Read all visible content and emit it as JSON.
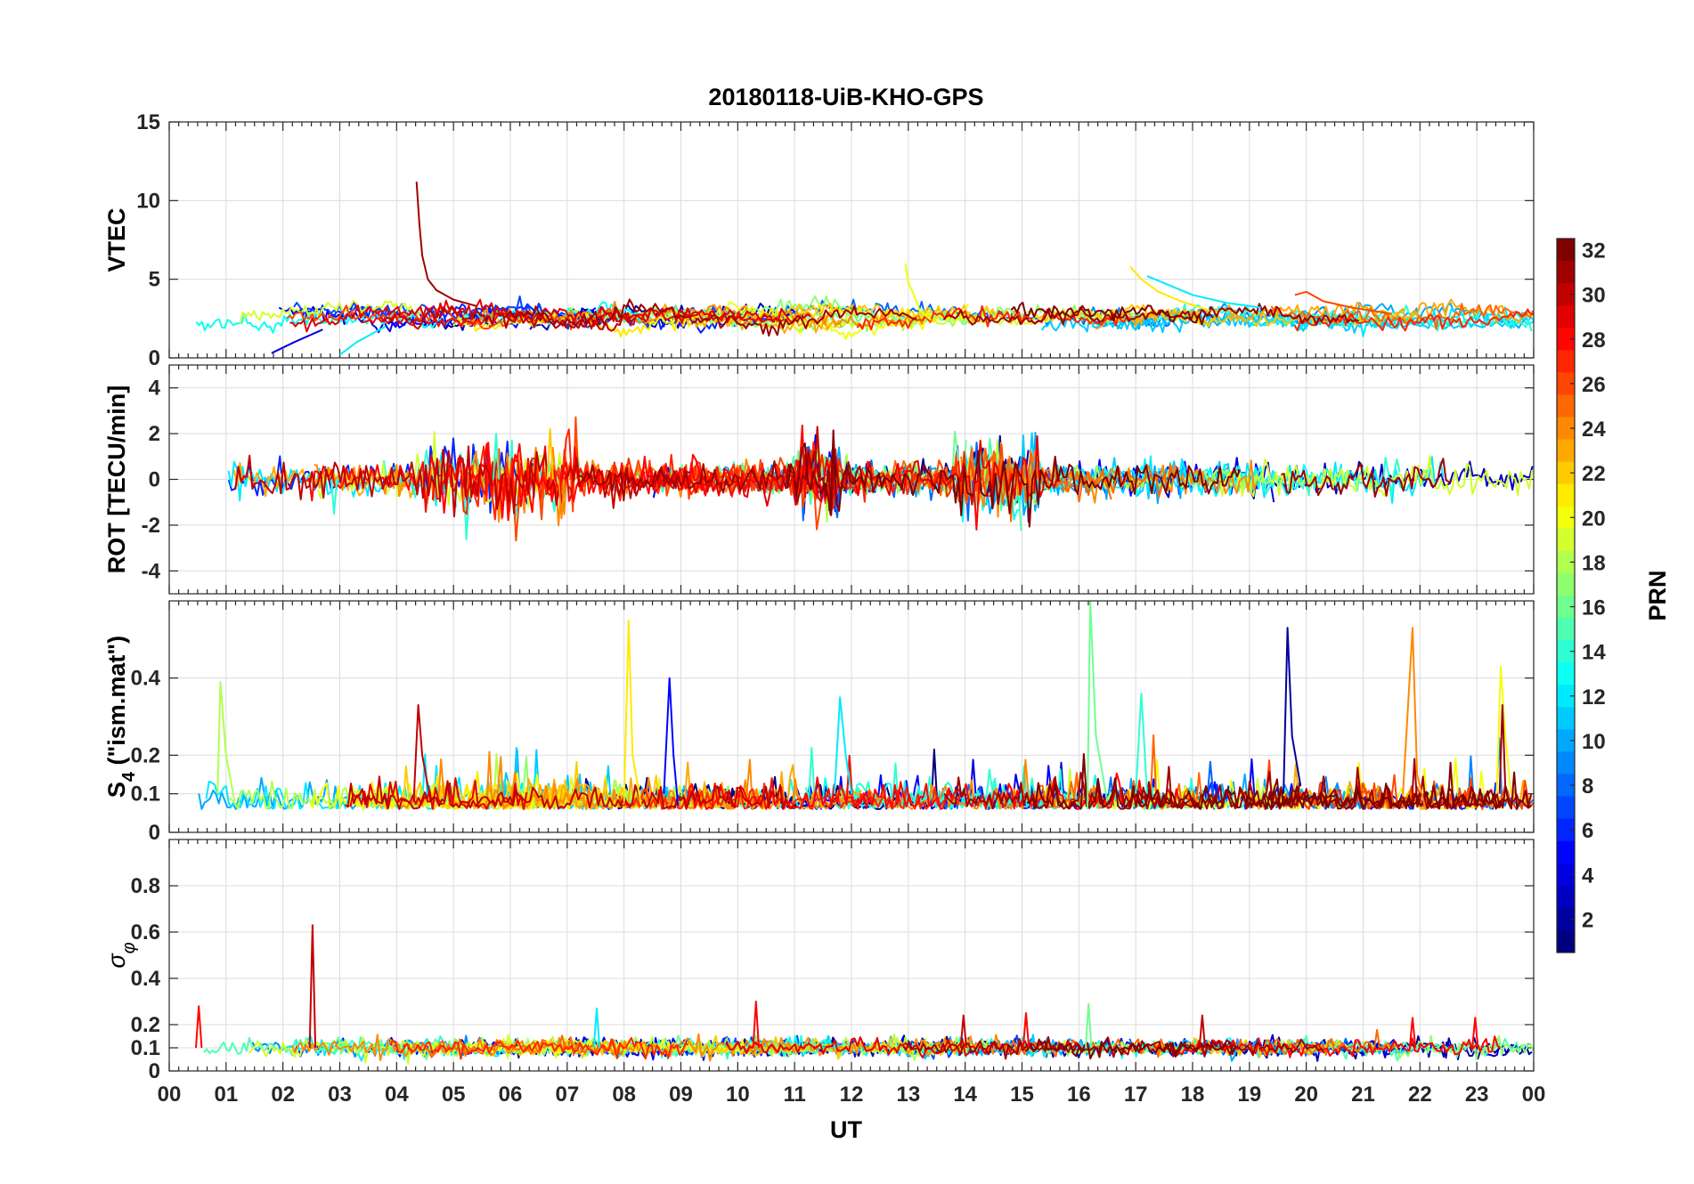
{
  "chart_data": {
    "type": "line",
    "title": "20180118-UiB-KHO-GPS",
    "xlabel": "UT",
    "x_ticks": [
      "00",
      "01",
      "02",
      "03",
      "04",
      "05",
      "06",
      "07",
      "08",
      "09",
      "10",
      "11",
      "12",
      "13",
      "14",
      "15",
      "16",
      "17",
      "18",
      "19",
      "20",
      "21",
      "22",
      "23",
      "00"
    ],
    "xlim_hours": [
      0,
      24
    ],
    "grid": true,
    "colorbar": {
      "label": "PRN",
      "range": [
        1,
        32
      ],
      "ticks": [
        "2",
        "4",
        "6",
        "8",
        "10",
        "12",
        "14",
        "16",
        "18",
        "20",
        "22",
        "24",
        "26",
        "28",
        "30",
        "32"
      ],
      "colormap": "jet",
      "placement": "right"
    },
    "panels": [
      {
        "name": "vtec",
        "ylabel": "VTEC",
        "ylim": [
          0,
          15
        ],
        "y_ticks": [
          "0",
          "5",
          "10",
          "15"
        ],
        "baseline": 2.6,
        "variability": 0.7,
        "events": [
          {
            "prn": 31,
            "t": [
              4.35,
              4.4,
              4.45,
              4.55,
              4.7,
              5.0,
              5.4
            ],
            "v": [
              11.2,
              8.5,
              6.5,
              5.0,
              4.3,
              3.7,
              3.3
            ]
          },
          {
            "prn": 20,
            "t": [
              12.95,
              13.0,
              13.1,
              13.2,
              13.4
            ],
            "v": [
              6.0,
              4.8,
              4.0,
              3.0,
              2.4
            ]
          },
          {
            "prn": 21,
            "t": [
              16.9,
              17.1,
              17.4,
              17.8,
              18.3
            ],
            "v": [
              5.8,
              5.0,
              4.2,
              3.6,
              3.0
            ]
          },
          {
            "prn": 12,
            "t": [
              17.2,
              17.6,
              18.0,
              18.6,
              19.2
            ],
            "v": [
              5.2,
              4.6,
              4.0,
              3.5,
              3.2
            ]
          },
          {
            "prn": 26,
            "t": [
              19.8,
              20.0,
              20.3,
              20.8,
              21.5
            ],
            "v": [
              4.0,
              4.2,
              3.6,
              3.2,
              2.8
            ]
          },
          {
            "prn": 4,
            "t": [
              1.8,
              2.2,
              2.7
            ],
            "v": [
              0.3,
              1.0,
              1.8
            ]
          },
          {
            "prn": 12,
            "t": [
              3.0,
              3.3,
              3.8
            ],
            "v": [
              0.2,
              1.0,
              2.0
            ]
          }
        ]
      },
      {
        "name": "rot",
        "ylabel": "ROT [TECU/min]",
        "ylim": [
          -5,
          5
        ],
        "y_ticks": [
          "-4",
          "-2",
          "0",
          "2",
          "4"
        ],
        "baseline": 0,
        "variability": 0.35,
        "events": [
          {
            "prn": 30,
            "t": [
              11.35,
              11.4,
              11.45
            ],
            "v": [
              0,
              2.3,
              0
            ]
          },
          {
            "prn": 28,
            "t": [
              14.15,
              14.2,
              14.25
            ],
            "v": [
              0,
              -2.2,
              0
            ]
          },
          {
            "prn": 22,
            "t": [
              6.65,
              6.7,
              6.75
            ],
            "v": [
              0,
              2.2,
              0
            ]
          },
          {
            "prn": 14,
            "t": [
              5.7,
              5.75,
              5.8
            ],
            "v": [
              0,
              2.0,
              0
            ]
          },
          {
            "prn": 24,
            "t": [
              6.85,
              6.9,
              6.95
            ],
            "v": [
              0,
              -1.7,
              0
            ]
          },
          {
            "prn": 14,
            "t": [
              2.85,
              2.9,
              2.95
            ],
            "v": [
              0,
              -1.5,
              0
            ]
          }
        ]
      },
      {
        "name": "s4",
        "ylabel": "S4 (\"ism.mat\")",
        "ylabel_main": "S",
        "ylabel_sub": "4",
        "ylabel_rest": " (\"ism.mat\")",
        "ylim": [
          0,
          0.6
        ],
        "y_ticks": [
          "0",
          "0.1",
          "0.2",
          "0.4"
        ],
        "baseline": 0.06,
        "variability": 0.03,
        "events": [
          {
            "prn": 16,
            "t": [
              16.15,
              16.2,
              16.3,
              16.5
            ],
            "v": [
              0.06,
              0.6,
              0.25,
              0.08
            ]
          },
          {
            "prn": 21,
            "t": [
              8.0,
              8.08,
              8.15,
              8.3
            ],
            "v": [
              0.08,
              0.55,
              0.2,
              0.07
            ]
          },
          {
            "prn": 2,
            "t": [
              19.6,
              19.67,
              19.75,
              19.9
            ],
            "v": [
              0.1,
              0.53,
              0.25,
              0.12
            ]
          },
          {
            "prn": 24,
            "t": [
              21.7,
              21.87,
              21.95,
              22.1
            ],
            "v": [
              0.1,
              0.53,
              0.15,
              0.06
            ]
          },
          {
            "prn": 18,
            "t": [
              0.85,
              0.9,
              1.0,
              1.15
            ],
            "v": [
              0.1,
              0.39,
              0.2,
              0.08
            ]
          },
          {
            "prn": 5,
            "t": [
              8.7,
              8.8,
              8.87,
              8.95
            ],
            "v": [
              0.1,
              0.4,
              0.2,
              0.07
            ]
          },
          {
            "prn": 30,
            "t": [
              4.3,
              4.38,
              4.45,
              4.6
            ],
            "v": [
              0.08,
              0.33,
              0.2,
              0.08
            ]
          },
          {
            "prn": 20,
            "t": [
              23.35,
              23.42,
              23.5,
              23.6
            ],
            "v": [
              0.1,
              0.43,
              0.25,
              0.1
            ]
          },
          {
            "prn": 12,
            "t": [
              11.7,
              11.8,
              11.9,
              12.0
            ],
            "v": [
              0.1,
              0.35,
              0.2,
              0.1
            ]
          },
          {
            "prn": 31,
            "t": [
              23.4,
              23.45,
              23.5
            ],
            "v": [
              0.1,
              0.33,
              0.12
            ]
          },
          {
            "prn": 14,
            "t": [
              17.0,
              17.1,
              17.2
            ],
            "v": [
              0.1,
              0.36,
              0.1
            ]
          }
        ]
      },
      {
        "name": "sigma_phi",
        "ylabel": "σφ",
        "ylabel_main": "σ",
        "ylabel_sub": "φ",
        "ylim": [
          0,
          1
        ],
        "y_ticks": [
          "0",
          "0.1",
          "0.2",
          "0.4",
          "0.6",
          "0.8"
        ],
        "baseline": 0.1,
        "variability": 0.018,
        "events": [
          {
            "prn": 30,
            "t": [
              2.47,
              2.52,
              2.57
            ],
            "v": [
              0.1,
              0.63,
              0.1
            ]
          },
          {
            "prn": 28,
            "t": [
              0.47,
              0.52,
              0.57
            ],
            "v": [
              0.1,
              0.28,
              0.1
            ]
          },
          {
            "prn": 28,
            "t": [
              10.27,
              10.32,
              10.37
            ],
            "v": [
              0.1,
              0.3,
              0.1
            ]
          },
          {
            "prn": 28,
            "t": [
              15.02,
              15.07,
              15.12
            ],
            "v": [
              0.1,
              0.25,
              0.1
            ]
          },
          {
            "prn": 16,
            "t": [
              16.12,
              16.17,
              16.22
            ],
            "v": [
              0.1,
              0.29,
              0.1
            ]
          },
          {
            "prn": 12,
            "t": [
              7.47,
              7.52,
              7.57
            ],
            "v": [
              0.1,
              0.27,
              0.1
            ]
          },
          {
            "prn": 30,
            "t": [
              18.12,
              18.17,
              18.22
            ],
            "v": [
              0.1,
              0.24,
              0.1
            ]
          },
          {
            "prn": 30,
            "t": [
              13.92,
              13.97,
              14.02
            ],
            "v": [
              0.1,
              0.24,
              0.1
            ]
          },
          {
            "prn": 28,
            "t": [
              21.82,
              21.87,
              21.92
            ],
            "v": [
              0.1,
              0.23,
              0.1
            ]
          },
          {
            "prn": 28,
            "t": [
              22.92,
              22.97,
              23.02
            ],
            "v": [
              0.1,
              0.23,
              0.1
            ]
          }
        ]
      }
    ]
  }
}
